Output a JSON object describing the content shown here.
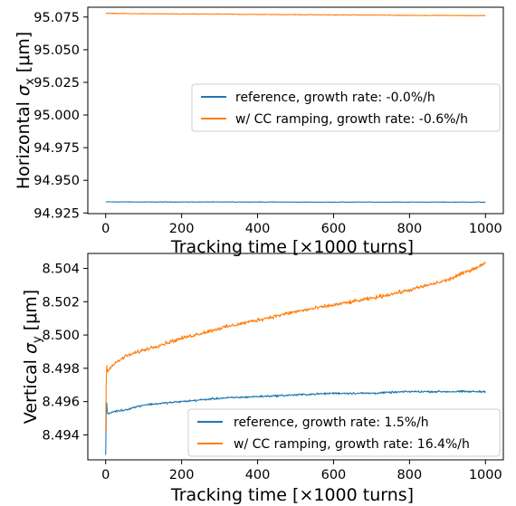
{
  "chart_data": [
    {
      "type": "line",
      "xlabel": "Tracking time [×1000 turns]",
      "ylabel": "Horizontal σ_x [μm]",
      "xlim": [
        -47,
        1047
      ],
      "ylim": [
        94.9245,
        95.0825
      ],
      "xticks": [
        0,
        200,
        400,
        600,
        800,
        1000
      ],
      "xtick_labels": [
        "0",
        "200",
        "400",
        "600",
        "800",
        "1000"
      ],
      "yticks": [
        94.925,
        94.95,
        94.975,
        95.0,
        95.025,
        95.05,
        95.075
      ],
      "ytick_labels": [
        "94.925",
        "94.950",
        "94.975",
        "95.000",
        "95.025",
        "95.050",
        "95.075"
      ],
      "grid": false,
      "legend_position": "center-right",
      "series": [
        {
          "name": "reference, growth rate: -0.0%/h",
          "color": "#1f77b4",
          "x": [
            0,
            100,
            200,
            300,
            400,
            500,
            600,
            700,
            800,
            900,
            1000
          ],
          "y": [
            94.9335,
            94.9334,
            94.9334,
            94.9334,
            94.9334,
            94.9333,
            94.9333,
            94.9333,
            94.9333,
            94.9333,
            94.9333
          ]
        },
        {
          "name": "w/ CC ramping, growth rate: -0.6%/h",
          "color": "#ff7f0e",
          "x": [
            0,
            100,
            200,
            300,
            400,
            500,
            600,
            700,
            800,
            900,
            1000
          ],
          "y": [
            95.0778,
            95.0775,
            95.0773,
            95.0772,
            95.077,
            95.0768,
            95.0766,
            95.0765,
            95.0763,
            95.0762,
            95.0761
          ]
        }
      ]
    },
    {
      "type": "line",
      "xlabel": "Tracking time [×1000 turns]",
      "ylabel": "Vertical σ_y [μm]",
      "xlim": [
        -47,
        1047
      ],
      "ylim": [
        8.4925,
        8.5049
      ],
      "xticks": [
        0,
        200,
        400,
        600,
        800,
        1000
      ],
      "xtick_labels": [
        "0",
        "200",
        "400",
        "600",
        "800",
        "1000"
      ],
      "yticks": [
        8.494,
        8.496,
        8.498,
        8.5,
        8.502,
        8.504
      ],
      "ytick_labels": [
        "8.494",
        "8.496",
        "8.498",
        "8.500",
        "8.502",
        "8.504"
      ],
      "grid": false,
      "legend_position": "lower-right",
      "series": [
        {
          "name": "reference, growth rate: 1.5%/h",
          "color": "#1f77b4",
          "x": [
            0,
            2,
            5,
            10,
            20,
            50,
            100,
            200,
            300,
            400,
            500,
            600,
            700,
            800,
            900,
            1000
          ],
          "y": [
            8.4928,
            8.4962,
            8.4952,
            8.4953,
            8.4954,
            8.4955,
            8.4958,
            8.496,
            8.4962,
            8.4963,
            8.4964,
            8.4965,
            8.4965,
            8.4966,
            8.4966,
            8.4966
          ]
        },
        {
          "name": "w/ CC ramping, growth rate: 16.4%/h",
          "color": "#ff7f0e",
          "x": [
            0,
            2,
            5,
            10,
            20,
            50,
            100,
            200,
            300,
            400,
            500,
            600,
            700,
            800,
            900,
            1000
          ],
          "y": [
            8.4942,
            8.4983,
            8.4978,
            8.498,
            8.4982,
            8.4987,
            8.4991,
            8.4998,
            8.5004,
            8.5009,
            8.5014,
            8.5018,
            8.5022,
            8.5027,
            8.5033,
            8.5043
          ]
        }
      ]
    }
  ]
}
